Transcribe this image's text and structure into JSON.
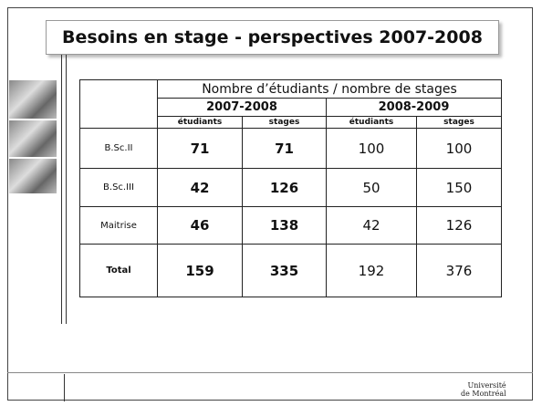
{
  "header": {
    "title": "Besoins en stage - perspectives 2007-2008"
  },
  "table": {
    "caption": "Nombre d’étudiants / nombre de stages",
    "groups": [
      "2007-2008",
      "2008-2009"
    ],
    "columns": [
      "étudiants",
      "stages",
      "étudiants",
      "stages"
    ],
    "rows": [
      [
        "B.Sc.II",
        71,
        71,
        100,
        100
      ],
      [
        "B.Sc.III",
        42,
        126,
        50,
        150
      ],
      [
        "Maitrise",
        46,
        138,
        42,
        126
      ],
      [
        "Total",
        159,
        335,
        192,
        376
      ]
    ]
  },
  "footer": {
    "logo_line1": "Université",
    "logo_line2": "de Montréal"
  }
}
